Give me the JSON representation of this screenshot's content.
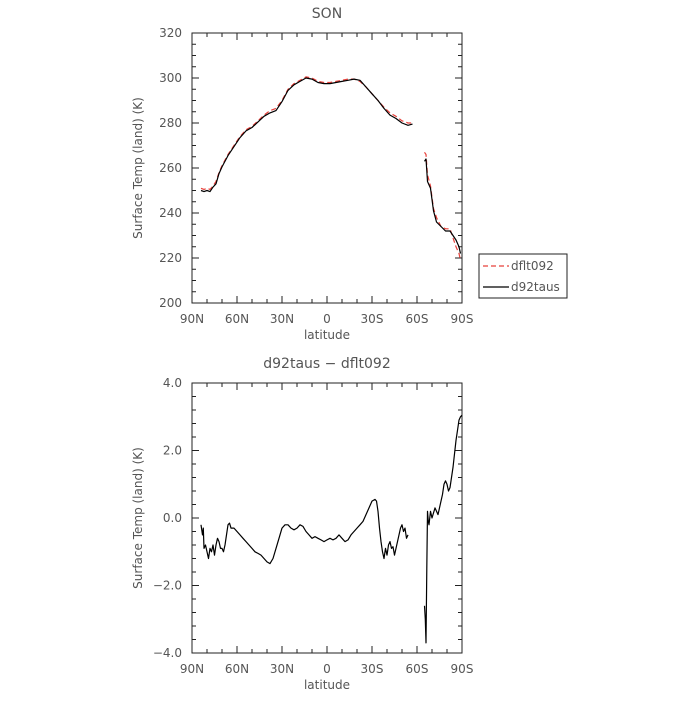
{
  "chart_data": [
    {
      "type": "line",
      "title": "SON",
      "xlabel": "latitude",
      "ylabel": "Surface Temp (land) (K)",
      "xlim": [
        90,
        -90
      ],
      "ylim": [
        200,
        320
      ],
      "x_ticks": [
        90,
        60,
        30,
        0,
        -30,
        -60,
        -90
      ],
      "x_tick_labels": [
        "90N",
        "60N",
        "30N",
        "0",
        "30S",
        "60S",
        "90S"
      ],
      "y_ticks": [
        200,
        220,
        240,
        260,
        280,
        300,
        320
      ],
      "y_tick_labels": [
        "200",
        "220",
        "240",
        "260",
        "280",
        "300",
        "320"
      ],
      "legend_position": "right",
      "series": [
        {
          "name": "dflt092",
          "color": "#e8403a",
          "dash": true,
          "segments": [
            [
              [
                84,
                251
              ],
              [
                82,
                250.5
              ],
              [
                80,
                251
              ],
              [
                78,
                250.5
              ],
              [
                76,
                252
              ],
              [
                74,
                254
              ],
              [
                72,
                258
              ],
              [
                70,
                261
              ],
              [
                66,
                266
              ],
              [
                62,
                270
              ],
              [
                58,
                274
              ],
              [
                54,
                277
              ],
              [
                50,
                278.5
              ],
              [
                46,
                281
              ],
              [
                42,
                283.5
              ],
              [
                38,
                285.5
              ],
              [
                34,
                286.5
              ],
              [
                30,
                290
              ],
              [
                26,
                295
              ],
              [
                22,
                297.5
              ],
              [
                18,
                299
              ],
              [
                14,
                300.5
              ],
              [
                10,
                300
              ],
              [
                6,
                298.5
              ],
              [
                2,
                298
              ],
              [
                -2,
                298
              ],
              [
                -6,
                298.5
              ],
              [
                -10,
                299
              ],
              [
                -14,
                299.5
              ],
              [
                -18,
                299.5
              ],
              [
                -22,
                298.5
              ],
              [
                -26,
                296
              ],
              [
                -30,
                293
              ],
              [
                -34,
                290
              ],
              [
                -38,
                287
              ],
              [
                -42,
                284.5
              ],
              [
                -46,
                283
              ],
              [
                -50,
                281
              ],
              [
                -54,
                280
              ],
              [
                -57,
                280
              ]
            ],
            [
              [
                -65,
                267
              ],
              [
                -66,
                266
              ],
              [
                -67,
                257
              ],
              [
                -69,
                252
              ],
              [
                -71,
                242
              ],
              [
                -73,
                238
              ],
              [
                -76,
                234
              ],
              [
                -79,
                233
              ],
              [
                -82,
                233
              ],
              [
                -84,
                229
              ],
              [
                -86,
                225
              ],
              [
                -88,
                222
              ],
              [
                -89,
                219
              ]
            ]
          ]
        },
        {
          "name": "d92taus",
          "color": "#000000",
          "dash": false,
          "segments": [
            [
              [
                84,
                250
              ],
              [
                82,
                249.5
              ],
              [
                80,
                250
              ],
              [
                78,
                249.5
              ],
              [
                76,
                251.5
              ],
              [
                74,
                253
              ],
              [
                72,
                257.5
              ],
              [
                70,
                260.5
              ],
              [
                66,
                265.5
              ],
              [
                62,
                269.5
              ],
              [
                58,
                273.5
              ],
              [
                54,
                276.5
              ],
              [
                50,
                278
              ],
              [
                46,
                280.5
              ],
              [
                42,
                283
              ],
              [
                38,
                284.5
              ],
              [
                34,
                285.5
              ],
              [
                30,
                289.5
              ],
              [
                26,
                294.5
              ],
              [
                22,
                297
              ],
              [
                18,
                298.5
              ],
              [
                14,
                300
              ],
              [
                10,
                299.5
              ],
              [
                6,
                298
              ],
              [
                2,
                297.5
              ],
              [
                -2,
                297.5
              ],
              [
                -6,
                298
              ],
              [
                -10,
                298.5
              ],
              [
                -14,
                299
              ],
              [
                -18,
                299.5
              ],
              [
                -22,
                299
              ],
              [
                -26,
                296
              ],
              [
                -30,
                293
              ],
              [
                -34,
                290
              ],
              [
                -38,
                286.5
              ],
              [
                -42,
                283.5
              ],
              [
                -46,
                282
              ],
              [
                -50,
                280
              ],
              [
                -54,
                279
              ],
              [
                -57,
                279.5
              ]
            ],
            [
              [
                -65,
                263
              ],
              [
                -66,
                264
              ],
              [
                -67,
                254
              ],
              [
                -69,
                251
              ],
              [
                -71,
                241
              ],
              [
                -73,
                236
              ],
              [
                -76,
                234
              ],
              [
                -79,
                232
              ],
              [
                -82,
                232
              ],
              [
                -84,
                230
              ],
              [
                -86,
                228
              ],
              [
                -88,
                225
              ],
              [
                -89,
                222
              ]
            ]
          ]
        }
      ]
    },
    {
      "type": "line",
      "title": "d92taus − dflt092",
      "xlabel": "latitude",
      "ylabel": "Surface Temp (land) (K)",
      "xlim": [
        90,
        -90
      ],
      "ylim": [
        -4,
        4
      ],
      "x_ticks": [
        90,
        60,
        30,
        0,
        -30,
        -60,
        -90
      ],
      "x_tick_labels": [
        "90N",
        "60N",
        "30N",
        "0",
        "30S",
        "60S",
        "90S"
      ],
      "y_ticks": [
        -4,
        -2,
        0,
        2,
        4
      ],
      "y_tick_labels": [
        "−4.0",
        "−2.0",
        "0.0",
        "2.0",
        "4.0"
      ],
      "series": [
        {
          "color": "#000000",
          "dash": false,
          "segments": [
            [
              [
                84,
                -0.2
              ],
              [
                83,
                -0.5
              ],
              [
                82.5,
                -0.3
              ],
              [
                82,
                -0.9
              ],
              [
                81,
                -0.8
              ],
              [
                80,
                -1.0
              ],
              [
                79,
                -1.2
              ],
              [
                78,
                -0.9
              ],
              [
                77,
                -1.0
              ],
              [
                76,
                -0.8
              ],
              [
                75,
                -1.1
              ],
              [
                74,
                -0.8
              ],
              [
                73,
                -0.6
              ],
              [
                72,
                -0.7
              ],
              [
                71,
                -0.9
              ],
              [
                70,
                -0.9
              ],
              [
                69,
                -1.0
              ],
              [
                68,
                -0.8
              ],
              [
                67,
                -0.5
              ],
              [
                66,
                -0.2
              ],
              [
                65,
                -0.15
              ],
              [
                64,
                -0.3
              ],
              [
                62,
                -0.3
              ],
              [
                60,
                -0.4
              ],
              [
                58,
                -0.5
              ],
              [
                56,
                -0.6
              ],
              [
                54,
                -0.7
              ],
              [
                52,
                -0.8
              ],
              [
                50,
                -0.9
              ],
              [
                48,
                -1.0
              ],
              [
                46,
                -1.05
              ],
              [
                44,
                -1.1
              ],
              [
                42,
                -1.2
              ],
              [
                40,
                -1.3
              ],
              [
                38,
                -1.35
              ],
              [
                36,
                -1.2
              ],
              [
                34,
                -0.9
              ],
              [
                32,
                -0.6
              ],
              [
                30,
                -0.3
              ],
              [
                28,
                -0.2
              ],
              [
                26,
                -0.2
              ],
              [
                24,
                -0.3
              ],
              [
                22,
                -0.35
              ],
              [
                20,
                -0.3
              ],
              [
                18,
                -0.2
              ],
              [
                16,
                -0.25
              ],
              [
                14,
                -0.4
              ],
              [
                12,
                -0.5
              ],
              [
                10,
                -0.6
              ],
              [
                8,
                -0.55
              ],
              [
                6,
                -0.6
              ],
              [
                4,
                -0.65
              ],
              [
                2,
                -0.7
              ],
              [
                0,
                -0.65
              ],
              [
                -2,
                -0.6
              ],
              [
                -4,
                -0.65
              ],
              [
                -6,
                -0.6
              ],
              [
                -8,
                -0.5
              ],
              [
                -10,
                -0.6
              ],
              [
                -12,
                -0.7
              ],
              [
                -14,
                -0.65
              ],
              [
                -16,
                -0.5
              ],
              [
                -18,
                -0.4
              ],
              [
                -20,
                -0.3
              ],
              [
                -22,
                -0.2
              ],
              [
                -24,
                -0.1
              ],
              [
                -26,
                0.1
              ],
              [
                -28,
                0.3
              ],
              [
                -30,
                0.5
              ],
              [
                -32,
                0.55
              ],
              [
                -33,
                0.5
              ],
              [
                -34,
                0.2
              ],
              [
                -35,
                -0.3
              ],
              [
                -36,
                -0.7
              ],
              [
                -37,
                -1.0
              ],
              [
                -38,
                -1.2
              ],
              [
                -39,
                -0.9
              ],
              [
                -40,
                -1.1
              ],
              [
                -41,
                -0.8
              ],
              [
                -42,
                -0.7
              ],
              [
                -43,
                -0.9
              ],
              [
                -44,
                -0.85
              ],
              [
                -45,
                -1.1
              ],
              [
                -46,
                -0.9
              ],
              [
                -47,
                -0.7
              ],
              [
                -48,
                -0.5
              ],
              [
                -49,
                -0.3
              ],
              [
                -50,
                -0.2
              ],
              [
                -51,
                -0.4
              ],
              [
                -52,
                -0.3
              ],
              [
                -53,
                -0.6
              ],
              [
                -54,
                -0.5
              ]
            ],
            [
              [
                -65,
                -2.6
              ],
              [
                -65.5,
                -3.0
              ],
              [
                -66,
                -3.7
              ],
              [
                -66.5,
                -1.5
              ],
              [
                -67,
                0.2
              ],
              [
                -67.5,
                -0.1
              ],
              [
                -68,
                -0.2
              ],
              [
                -69,
                0.2
              ],
              [
                -70,
                0.0
              ],
              [
                -71,
                0.15
              ],
              [
                -72,
                0.3
              ],
              [
                -73,
                0.2
              ],
              [
                -74,
                0.1
              ],
              [
                -75,
                0.3
              ],
              [
                -76,
                0.5
              ],
              [
                -77,
                0.7
              ],
              [
                -78,
                1.0
              ],
              [
                -79,
                1.1
              ],
              [
                -80,
                1.0
              ],
              [
                -81,
                0.8
              ],
              [
                -82,
                0.9
              ],
              [
                -83,
                1.2
              ],
              [
                -84,
                1.5
              ],
              [
                -85,
                1.9
              ],
              [
                -86,
                2.3
              ],
              [
                -87,
                2.6
              ],
              [
                -88,
                2.9
              ],
              [
                -89,
                3.0
              ],
              [
                -90,
                3.05
              ]
            ]
          ]
        }
      ]
    }
  ]
}
